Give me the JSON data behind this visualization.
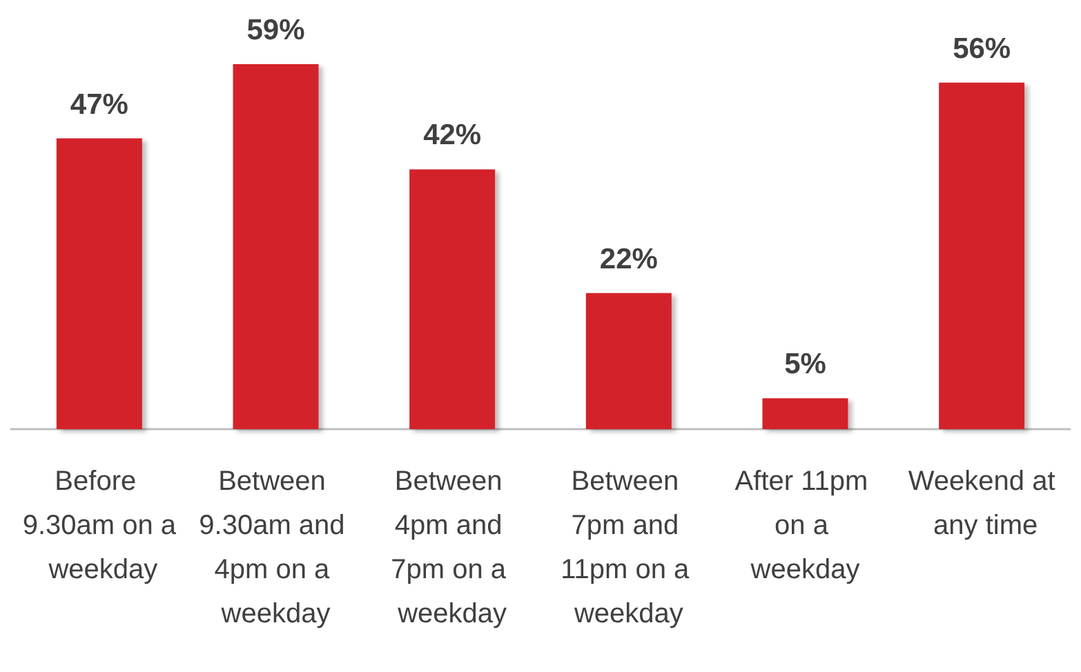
{
  "chart_data": {
    "type": "bar",
    "categories": [
      "Before 9.30am on a weekday",
      "Between 9.30am and 4pm on a weekday",
      "Between 4pm and 7pm on a weekday",
      "Between 7pm and 11pm on a weekday",
      "After 11pm on a weekday",
      "Weekend at any time"
    ],
    "values": [
      47,
      59,
      42,
      22,
      5,
      56
    ],
    "color": "#d42229",
    "value_labels": [
      "47%",
      "59%",
      "42%",
      "22%",
      "5%",
      "56%"
    ],
    "tick_labels": "x"
  }
}
